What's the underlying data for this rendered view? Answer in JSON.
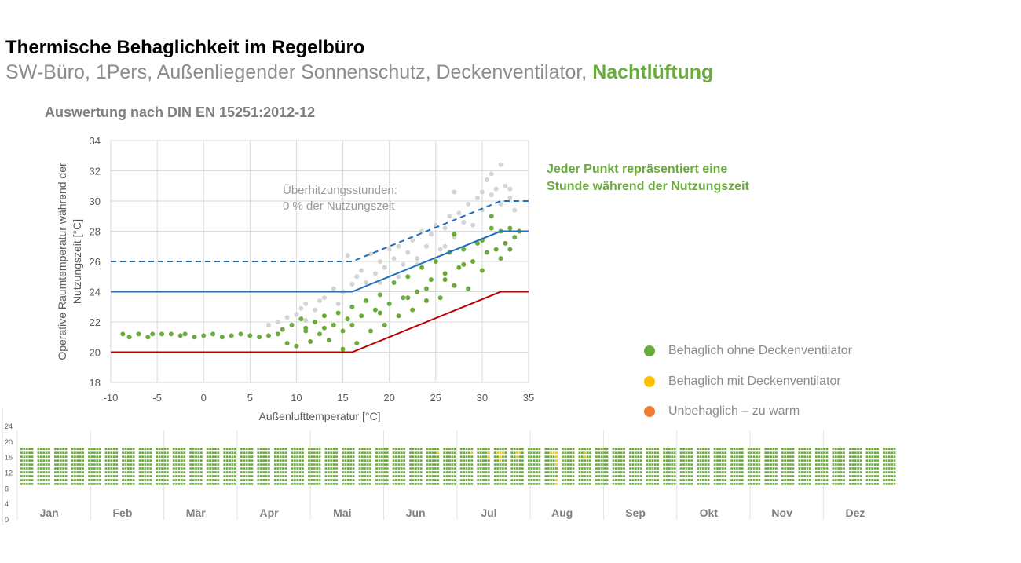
{
  "header": {
    "title": "Thermische Behaglichkeit im Regelbüro",
    "subtitle_prefix": "SW-Büro, 1Pers, Außenliegender Sonnenschutz, Deckenventilator, ",
    "subtitle_highlight": "Nachtlüftung",
    "evaluation": "Auswertung nach DIN EN 15251:2012-12",
    "note_line1": "Jeder Punkt repräsentiert eine",
    "note_line2": "Stunde während der Nutzungszeit"
  },
  "colors": {
    "green": "#6aac3c",
    "yellow": "#ffc000",
    "orange": "#ed7d31",
    "gray": "#d4d4d4",
    "red": "#c00000",
    "blue": "#1f6fbf",
    "accent": "#6aac3c"
  },
  "legend": [
    {
      "label": "Behaglich ohne Deckenventilator",
      "color": "#6aac3c"
    },
    {
      "label": "Behaglich mit Deckenventilator",
      "color": "#ffc000"
    },
    {
      "label": "Unbehaglich – zu warm",
      "color": "#ed7d31"
    }
  ],
  "chart_data": [
    {
      "type": "scatter",
      "xlabel": "Außenlufttemperatur [°C]",
      "ylabel_line1": "Operative Raumtemperatur  während der",
      "ylabel_line2": "Nutzungszeit [°C]",
      "xlim": [
        -10,
        35
      ],
      "ylim": [
        18,
        34
      ],
      "xticks": [
        -10,
        -5,
        0,
        5,
        10,
        15,
        20,
        25,
        30,
        35
      ],
      "yticks": [
        18,
        20,
        22,
        24,
        26,
        28,
        30,
        32,
        34
      ],
      "grid": true,
      "annotation_line1": "Überhitzungsstunden:",
      "annotation_line2": "0 % der Nutzungszeit",
      "lines": [
        {
          "style": "solid",
          "color": "#c00000",
          "points": [
            [
              -10,
              20
            ],
            [
              16,
              20
            ],
            [
              32,
              24
            ],
            [
              35,
              24
            ]
          ]
        },
        {
          "style": "solid",
          "color": "#1f6fbf",
          "points": [
            [
              -10,
              24
            ],
            [
              16,
              24
            ],
            [
              32,
              28
            ],
            [
              35,
              28
            ]
          ]
        },
        {
          "style": "dashed",
          "color": "#1f6fbf",
          "points": [
            [
              -10,
              26
            ],
            [
              16,
              26
            ],
            [
              32,
              30
            ],
            [
              35,
              30
            ]
          ]
        }
      ],
      "series": [
        {
          "color": "#d4d4d4",
          "points": [
            [
              7,
              21.8
            ],
            [
              8,
              22
            ],
            [
              9,
              22.3
            ],
            [
              10,
              22.5
            ],
            [
              10.5,
              22.9
            ],
            [
              11,
              23.2
            ],
            [
              12,
              22.8
            ],
            [
              12.5,
              23.4
            ],
            [
              13,
              23.6
            ],
            [
              14,
              24.2
            ],
            [
              14.5,
              23.2
            ],
            [
              15,
              24
            ],
            [
              15.5,
              26.4
            ],
            [
              16,
              24.5
            ],
            [
              16.5,
              25
            ],
            [
              17,
              25.4
            ],
            [
              17.5,
              24.6
            ],
            [
              18,
              26.5
            ],
            [
              18.5,
              25.2
            ],
            [
              19,
              26
            ],
            [
              19.5,
              25.6
            ],
            [
              20,
              26.8
            ],
            [
              20.5,
              26.2
            ],
            [
              21,
              27
            ],
            [
              21.5,
              25.8
            ],
            [
              22,
              26.6
            ],
            [
              22.5,
              27.4
            ],
            [
              23,
              26.2
            ],
            [
              23.5,
              28
            ],
            [
              24,
              27
            ],
            [
              24.5,
              27.8
            ],
            [
              25,
              28.4
            ],
            [
              25.5,
              26.8
            ],
            [
              26,
              28.2
            ],
            [
              26.5,
              29
            ],
            [
              27,
              27.6
            ],
            [
              27,
              30.6
            ],
            [
              27.5,
              29.2
            ],
            [
              28,
              28.6
            ],
            [
              28.5,
              29.8
            ],
            [
              29,
              28.4
            ],
            [
              29.5,
              30.2
            ],
            [
              30,
              29.4
            ],
            [
              30,
              30.6
            ],
            [
              30.5,
              31.4
            ],
            [
              31,
              31.8
            ],
            [
              31,
              30.4
            ],
            [
              31.5,
              30.8
            ],
            [
              32,
              32.4
            ],
            [
              32,
              29.8
            ],
            [
              32.5,
              31
            ],
            [
              33,
              30.8
            ],
            [
              33.5,
              29.4
            ],
            [
              33,
              30.2
            ],
            [
              13,
              22.4
            ],
            [
              11,
              22.1
            ],
            [
              19,
              24.6
            ],
            [
              21,
              25
            ],
            [
              23,
              25.8
            ],
            [
              26,
              27
            ]
          ]
        },
        {
          "color": "#6aac3c",
          "points": [
            [
              -8.7,
              21.2
            ],
            [
              -8,
              21
            ],
            [
              -7,
              21.2
            ],
            [
              -6,
              21
            ],
            [
              -5.5,
              21.2
            ],
            [
              -4.5,
              21.2
            ],
            [
              -3.5,
              21.2
            ],
            [
              -2.5,
              21.1
            ],
            [
              -2,
              21.2
            ],
            [
              -1,
              21
            ],
            [
              0,
              21.1
            ],
            [
              1,
              21.2
            ],
            [
              2,
              21
            ],
            [
              3,
              21.1
            ],
            [
              4,
              21.2
            ],
            [
              5,
              21.1
            ],
            [
              6,
              21
            ],
            [
              7,
              21.1
            ],
            [
              8,
              21.2
            ],
            [
              8.5,
              21.5
            ],
            [
              9,
              20.6
            ],
            [
              9.5,
              21.8
            ],
            [
              10,
              20.4
            ],
            [
              10.5,
              22.2
            ],
            [
              11,
              21.6
            ],
            [
              11.5,
              20.7
            ],
            [
              12,
              22
            ],
            [
              12.5,
              21.2
            ],
            [
              13,
              22.4
            ],
            [
              13.5,
              20.8
            ],
            [
              14,
              21.8
            ],
            [
              14.5,
              22.6
            ],
            [
              15,
              20.2
            ],
            [
              15,
              21.4
            ],
            [
              15.5,
              22.2
            ],
            [
              16,
              23
            ],
            [
              16.5,
              20.6
            ],
            [
              17,
              22.4
            ],
            [
              17.5,
              23.4
            ],
            [
              18,
              21.4
            ],
            [
              18.5,
              22.8
            ],
            [
              19,
              23.8
            ],
            [
              19.5,
              21.8
            ],
            [
              20,
              23.2
            ],
            [
              20.5,
              24.6
            ],
            [
              21,
              22.4
            ],
            [
              21.5,
              23.6
            ],
            [
              22,
              25
            ],
            [
              22.5,
              22.8
            ],
            [
              23,
              24
            ],
            [
              23.5,
              25.6
            ],
            [
              24,
              23.4
            ],
            [
              24.5,
              24.8
            ],
            [
              25,
              26
            ],
            [
              25.5,
              23.6
            ],
            [
              26,
              25.2
            ],
            [
              26.5,
              26.6
            ],
            [
              27,
              24.4
            ],
            [
              27,
              27.8
            ],
            [
              27.5,
              25.6
            ],
            [
              28,
              26.8
            ],
            [
              28.5,
              24.2
            ],
            [
              29,
              26
            ],
            [
              29.5,
              27.2
            ],
            [
              30,
              25.4
            ],
            [
              30,
              27.4
            ],
            [
              30.5,
              26.6
            ],
            [
              31,
              29
            ],
            [
              31,
              28.2
            ],
            [
              31.5,
              26.8
            ],
            [
              32,
              28
            ],
            [
              32,
              26.2
            ],
            [
              32.5,
              27.2
            ],
            [
              33,
              28.2
            ],
            [
              33,
              26.8
            ],
            [
              33.5,
              27.6
            ],
            [
              34,
              28
            ],
            [
              22,
              23.6
            ],
            [
              24,
              24.2
            ],
            [
              26,
              24.8
            ],
            [
              28,
              25.8
            ],
            [
              19,
              22.6
            ],
            [
              16,
              21.8
            ],
            [
              13,
              21.6
            ],
            [
              11,
              21.4
            ]
          ]
        }
      ]
    },
    {
      "type": "heatmap",
      "yticks": [
        0,
        4,
        8,
        12,
        16,
        20,
        24
      ],
      "months": [
        "Jan",
        "Feb",
        "Mär",
        "Apr",
        "Mai",
        "Jun",
        "Jul",
        "Aug",
        "Sep",
        "Okt",
        "Nov",
        "Dez"
      ],
      "weeks": 52,
      "workdays_per_week": 5,
      "hours": [
        9,
        10,
        11,
        12,
        13,
        14,
        15,
        16,
        17,
        18
      ],
      "default_category": "Behaglich ohne Deckenventilator",
      "yellow_cells": [
        [
          24,
          4,
          17
        ],
        [
          26,
          4,
          17
        ],
        [
          27,
          4,
          16
        ],
        [
          27,
          4,
          17
        ],
        [
          28,
          1,
          17
        ],
        [
          28,
          2,
          17
        ],
        [
          28,
          3,
          17
        ],
        [
          28,
          2,
          16
        ],
        [
          28,
          2,
          15
        ],
        [
          29,
          2,
          17
        ],
        [
          29,
          3,
          17
        ],
        [
          29,
          2,
          16
        ],
        [
          31,
          2,
          17
        ],
        [
          31,
          3,
          17
        ],
        [
          31,
          4,
          17
        ],
        [
          31,
          4,
          16
        ],
        [
          31,
          4,
          15
        ],
        [
          31,
          4,
          14
        ],
        [
          31,
          4,
          10
        ],
        [
          31,
          4,
          9
        ],
        [
          33,
          2,
          16
        ],
        [
          33,
          2,
          17
        ]
      ]
    }
  ]
}
